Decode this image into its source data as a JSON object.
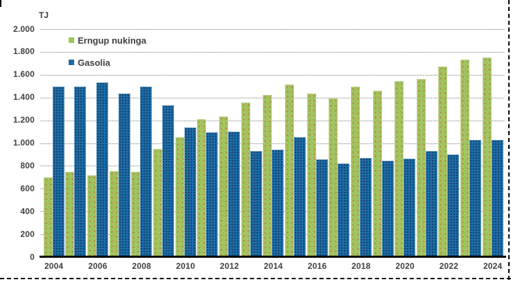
{
  "frame": {
    "border_style": "dashed-black-bottom-right",
    "border_color": "#000000",
    "background": "#ffffff"
  },
  "palette": {
    "green_series": "#9fc556",
    "green_pattern_dot": "#c8762e",
    "blue_series": "#1e6ca7",
    "blue_pattern_dot": "#0d3a60",
    "gridline": "#b3b3b3",
    "axis_line": "#000000",
    "text": "#3f3f3f"
  },
  "chart_data": {
    "type": "bar",
    "title": "",
    "unit_label": "TJ",
    "xlabel": "",
    "ylabel": "TJ",
    "ylim": [
      0,
      2000
    ],
    "y_tick_step": 200,
    "y_tick_labels": [
      "2.000",
      "1.800",
      "1.600",
      "1.400",
      "1.200",
      "1.000",
      "800",
      "600",
      "400",
      "200",
      "0"
    ],
    "categories": [
      2004,
      2005,
      2006,
      2007,
      2008,
      2009,
      2010,
      2011,
      2012,
      2013,
      2014,
      2015,
      2016,
      2017,
      2018,
      2019,
      2020,
      2021,
      2022,
      2023,
      2024
    ],
    "x_tick_labels": [
      "2004",
      "2006",
      "2008",
      "2010",
      "2012",
      "2014",
      "2016",
      "2018",
      "2020",
      "2022",
      "2024"
    ],
    "grid": "horizontal-dotted",
    "legend_position": "top-left-inside",
    "series": [
      {
        "name": "Erngup nukinga",
        "color": "#9fc556",
        "values": [
          700,
          750,
          720,
          755,
          745,
          950,
          1050,
          1210,
          1235,
          1355,
          1425,
          1515,
          1435,
          1395,
          1495,
          1460,
          1545,
          1560,
          1675,
          1730,
          1750
        ]
      },
      {
        "name": "Gasolia",
        "color": "#1e6ca7",
        "values": [
          1495,
          1495,
          1535,
          1435,
          1495,
          1330,
          1140,
          1095,
          1100,
          930,
          940,
          1055,
          855,
          820,
          870,
          845,
          865,
          930,
          900,
          1025,
          1025
        ]
      }
    ]
  }
}
